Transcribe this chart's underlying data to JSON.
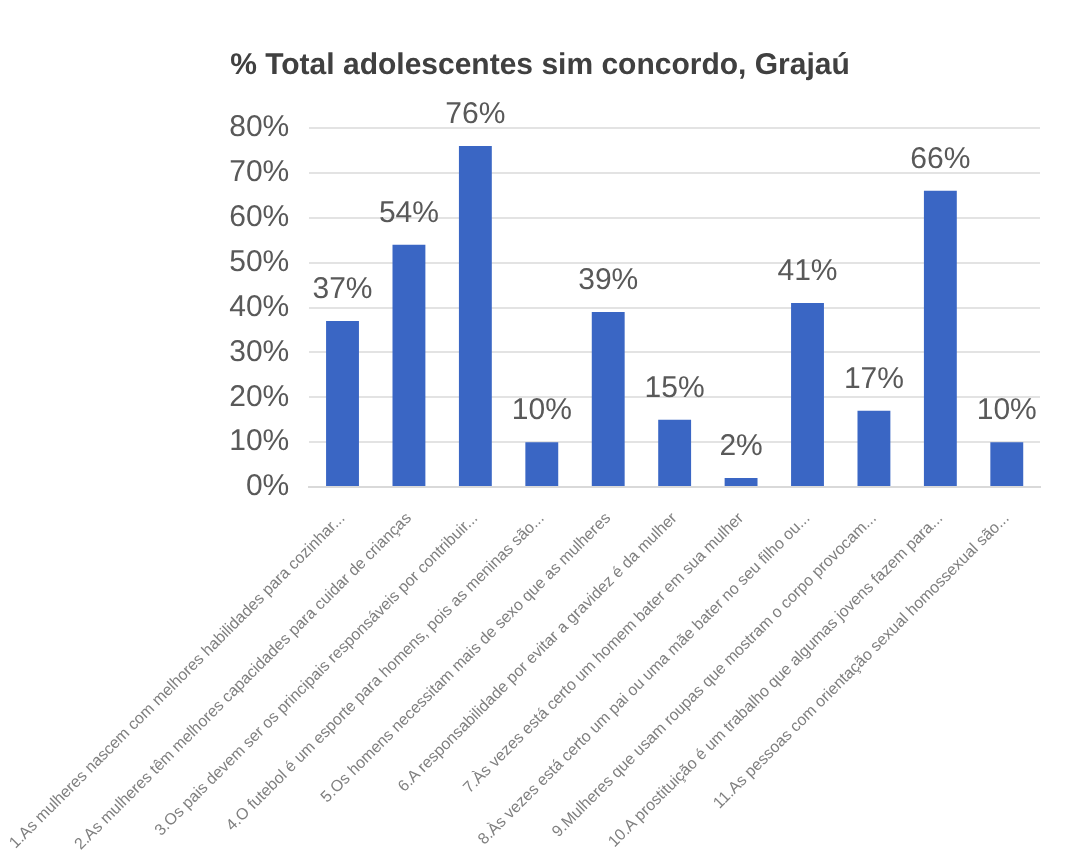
{
  "chart_data": {
    "type": "bar",
    "title": "% Total adolescentes sim concordo, Grajaú",
    "categories": [
      "1.As mulheres nascem com melhores habilidades para cozinhar...",
      "2.As mulheres têm melhores capacidades para cuidar de crianças",
      "3.Os pais devem ser os principais responsáveis por contribuir...",
      "4.O futebol é um esporte para homens, pois as meninas são...",
      "5.Os homens necessitam mais de sexo que as mulheres",
      "6.A responsabilidade por evitar a gravidez é da mulher",
      "7.Às vezes está certo um homem bater em sua mulher",
      "8.Às vezes está certo um pai ou uma mãe bater no seu filho ou...",
      "9.Mulheres que usam roupas que mostram o corpo provocam...",
      "10.A prostituição é um trabalho que algumas jovens fazem para...",
      "11.As pessoas com orientação sexual homossexual são..."
    ],
    "values": [
      37,
      54,
      76,
      10,
      39,
      15,
      2,
      41,
      17,
      66,
      10
    ],
    "value_labels": [
      "37%",
      "54%",
      "76%",
      "10%",
      "39%",
      "15%",
      "2%",
      "41%",
      "17%",
      "66%",
      "10%"
    ],
    "color": "#3a66c4",
    "ylim": [
      0,
      80
    ],
    "yticks": [
      {
        "value": 0,
        "label": "0%"
      },
      {
        "value": 10,
        "label": "10%"
      },
      {
        "value": 20,
        "label": "20%"
      },
      {
        "value": 30,
        "label": "30%"
      },
      {
        "value": 40,
        "label": "40%"
      },
      {
        "value": 50,
        "label": "50%"
      },
      {
        "value": 60,
        "label": "60%"
      },
      {
        "value": 70,
        "label": "70%"
      },
      {
        "value": 80,
        "label": "80%"
      }
    ],
    "grid": "y",
    "legend": false
  }
}
